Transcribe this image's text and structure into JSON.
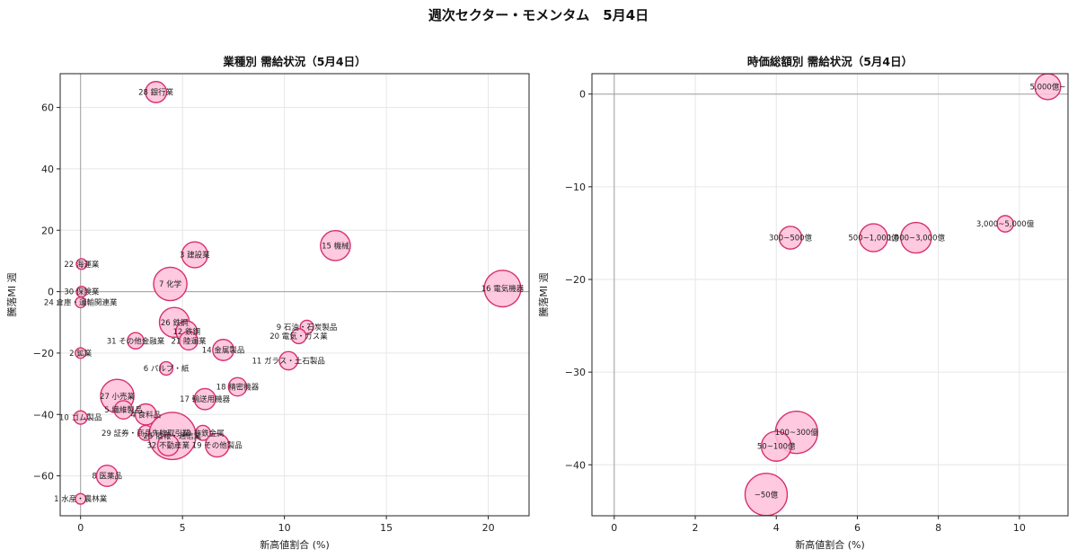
{
  "figure": {
    "title": "週次セクター・モメンタム　5月4日"
  },
  "colors": {
    "fill": "#ffc0d9",
    "stroke": "#d6306b",
    "grid": "#e6e6e6",
    "ref_line": "#a0a0a0"
  },
  "chart_data": [
    {
      "type": "scatter",
      "title": "業種別 需給状況（5月4日）",
      "xlabel": "新高値割合 (%)",
      "ylabel": "騰落MI 週",
      "xlim": [
        -1,
        22
      ],
      "ylim": [
        -73,
        71
      ],
      "xticks": [
        0,
        5,
        10,
        15,
        20
      ],
      "yticks": [
        -60,
        -40,
        -20,
        0,
        20,
        40,
        60
      ],
      "grid": true,
      "series": [
        {
          "points": [
            {
              "label": "28 銀行業",
              "x": 3.7,
              "y": 65,
              "size": 2
            },
            {
              "label": "3 建設業",
              "x": 5.6,
              "y": 12,
              "size": 3
            },
            {
              "label": "15 機械",
              "x": 12.5,
              "y": 15,
              "size": 4
            },
            {
              "label": "22 海運業",
              "x": 0.05,
              "y": 9,
              "size": 0.5
            },
            {
              "label": "7 化学",
              "x": 4.4,
              "y": 2.5,
              "size": 5
            },
            {
              "label": "16 電気機器",
              "x": 20.7,
              "y": 1,
              "size": 6
            },
            {
              "label": "30 保険業",
              "x": 0.05,
              "y": 0,
              "size": 0.5
            },
            {
              "label": "24 倉庫・運輸関連業",
              "x": 0,
              "y": -3.5,
              "size": 0.5
            },
            {
              "label": "26 鉄鋼",
              "x": 4.6,
              "y": -10,
              "size": 4
            },
            {
              "label": "12 鉄鋼",
              "x": 5.2,
              "y": -13,
              "size": 2
            },
            {
              "label": "9 石油・石炭製品",
              "x": 11.1,
              "y": -11.5,
              "size": 0.8
            },
            {
              "label": "20 電気・ガス業",
              "x": 10.7,
              "y": -14.5,
              "size": 1
            },
            {
              "label": "31 その他金融業",
              "x": 2.7,
              "y": -16,
              "size": 1.2
            },
            {
              "label": "21 陸運業",
              "x": 5.3,
              "y": -16,
              "size": 1.5
            },
            {
              "label": "14 金属製品",
              "x": 7.0,
              "y": -19,
              "size": 2
            },
            {
              "label": "2 鉱業",
              "x": 0,
              "y": -20,
              "size": 0.5
            },
            {
              "label": "11 ガラス・土石製品",
              "x": 10.2,
              "y": -22.5,
              "size": 1.5
            },
            {
              "label": "6 パルプ・紙",
              "x": 4.2,
              "y": -25,
              "size": 0.8
            },
            {
              "label": "18 精密機器",
              "x": 7.7,
              "y": -31,
              "size": 1.5
            },
            {
              "label": "27 小売業",
              "x": 1.8,
              "y": -34,
              "size": 5
            },
            {
              "label": "17 輸送用機器",
              "x": 6.1,
              "y": -35,
              "size": 2
            },
            {
              "label": "5 繊維製品",
              "x": 2.1,
              "y": -38.5,
              "size": 1.5
            },
            {
              "label": "4 食料品",
              "x": 3.2,
              "y": -40,
              "size": 2
            },
            {
              "label": "10 ゴム製品",
              "x": 0,
              "y": -41,
              "size": 0.8
            },
            {
              "label": "29 証券・商品先物取引業",
              "x": 3.2,
              "y": -46,
              "size": 1
            },
            {
              "label": "13 非鉄金属",
              "x": 6.0,
              "y": -46,
              "size": 1
            },
            {
              "label": "25 情報・通信業",
              "x": 4.5,
              "y": -47,
              "size": 10
            },
            {
              "label": "32 不動産業",
              "x": 4.3,
              "y": -50,
              "size": 2
            },
            {
              "label": "19 その他製品",
              "x": 6.7,
              "y": -50,
              "size": 2.5
            },
            {
              "label": "8 医薬品",
              "x": 1.3,
              "y": -60,
              "size": 2
            },
            {
              "label": "1 水産・農林業",
              "x": 0,
              "y": -67.5,
              "size": 0.5
            }
          ]
        }
      ]
    },
    {
      "type": "scatter",
      "title": "時価総額別 需給状況（5月4日）",
      "xlabel": "新高値割合 (%)",
      "ylabel": "騰落MI 週",
      "xlim": [
        -0.55,
        11.2
      ],
      "ylim": [
        -45.5,
        2.2
      ],
      "xticks": [
        0,
        2,
        4,
        6,
        8,
        10
      ],
      "yticks": [
        -40,
        -30,
        -20,
        -10,
        0
      ],
      "grid": true,
      "series": [
        {
          "points": [
            {
              "label": "5,000億~",
              "x": 10.7,
              "y": 0.8,
              "size": 3
            },
            {
              "label": "3,000~5,000億",
              "x": 9.65,
              "y": -14,
              "size": 1.2
            },
            {
              "label": "300~500億",
              "x": 4.35,
              "y": -15.5,
              "size": 2.3
            },
            {
              "label": "500~1,000億",
              "x": 6.4,
              "y": -15.5,
              "size": 3.5
            },
            {
              "label": "1,000~3,000億",
              "x": 7.45,
              "y": -15.5,
              "size": 4.2
            },
            {
              "label": "100~300億",
              "x": 4.5,
              "y": -36.5,
              "size": 8
            },
            {
              "label": "50~100億",
              "x": 4.0,
              "y": -38,
              "size": 4
            },
            {
              "label": "~50億",
              "x": 3.75,
              "y": -43.2,
              "size": 8
            }
          ]
        }
      ]
    }
  ]
}
